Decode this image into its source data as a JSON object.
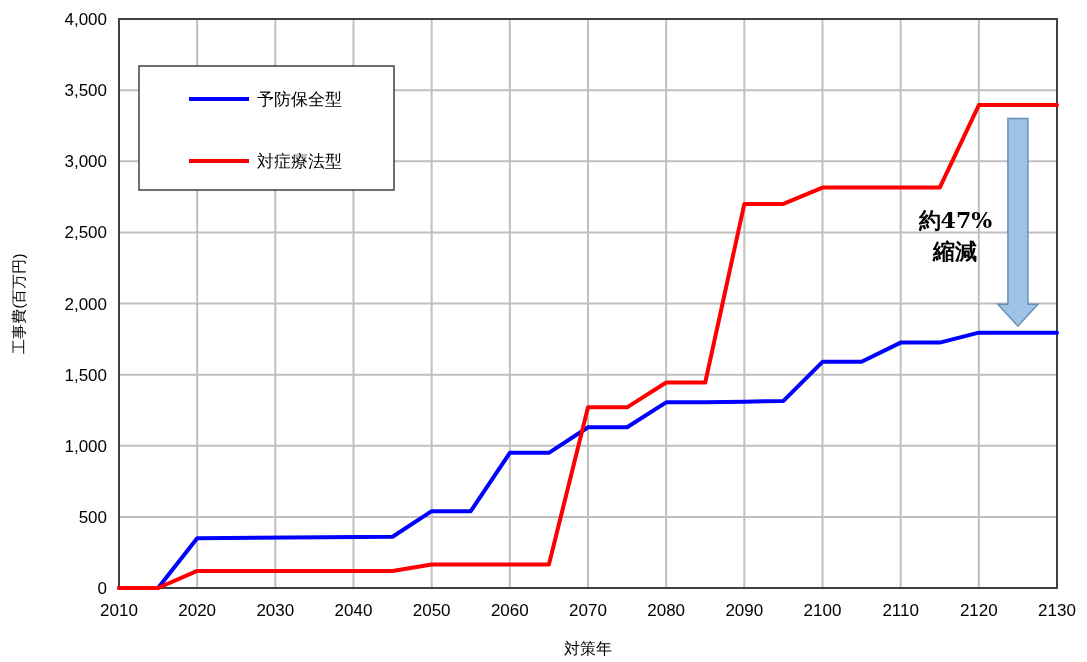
{
  "chart_data": {
    "type": "line",
    "xlabel": "対策年",
    "ylabel": "工事費(百万円)",
    "xlim": [
      2010,
      2130
    ],
    "xticks": [
      2010,
      2020,
      2030,
      2040,
      2050,
      2060,
      2070,
      2080,
      2090,
      2100,
      2110,
      2120,
      2130
    ],
    "ylim": [
      0,
      4000
    ],
    "yticks": [
      {
        "value": 0,
        "label": "0"
      },
      {
        "value": 500,
        "label": "500"
      },
      {
        "value": 1000,
        "label": "1,000"
      },
      {
        "value": 1500,
        "label": "1,500"
      },
      {
        "value": 2000,
        "label": "2,000"
      },
      {
        "value": 2500,
        "label": "2,500"
      },
      {
        "value": 3000,
        "label": "3,000"
      },
      {
        "value": 3500,
        "label": "3,500"
      },
      {
        "value": 4000,
        "label": "4,000"
      }
    ],
    "grid": true,
    "legend": "top left",
    "marker": "none",
    "line_style": "solid",
    "series": [
      {
        "name": "予防保全型",
        "color": "#0000ff",
        "x": [
          2010,
          2015,
          2020,
          2045,
          2050,
          2055,
          2060,
          2065,
          2070,
          2075,
          2080,
          2085,
          2090,
          2095,
          2100,
          2105,
          2110,
          2115,
          2120,
          2130
        ],
        "values": [
          0,
          0,
          350,
          360,
          540,
          540,
          950,
          950,
          1130,
          1130,
          1305,
          1305,
          1310,
          1315,
          1590,
          1590,
          1725,
          1725,
          1795,
          1795
        ]
      },
      {
        "name": "対症療法型",
        "color": "#ff0000",
        "x": [
          2010,
          2015,
          2020,
          2045,
          2050,
          2065,
          2070,
          2075,
          2080,
          2085,
          2090,
          2095,
          2100,
          2115,
          2120,
          2130
        ],
        "values": [
          0,
          0,
          120,
          120,
          165,
          165,
          1270,
          1270,
          1445,
          1445,
          2700,
          2700,
          2815,
          2815,
          3395,
          3395
        ]
      }
    ],
    "annotations": [
      "約47%",
      "縮減"
    ]
  }
}
